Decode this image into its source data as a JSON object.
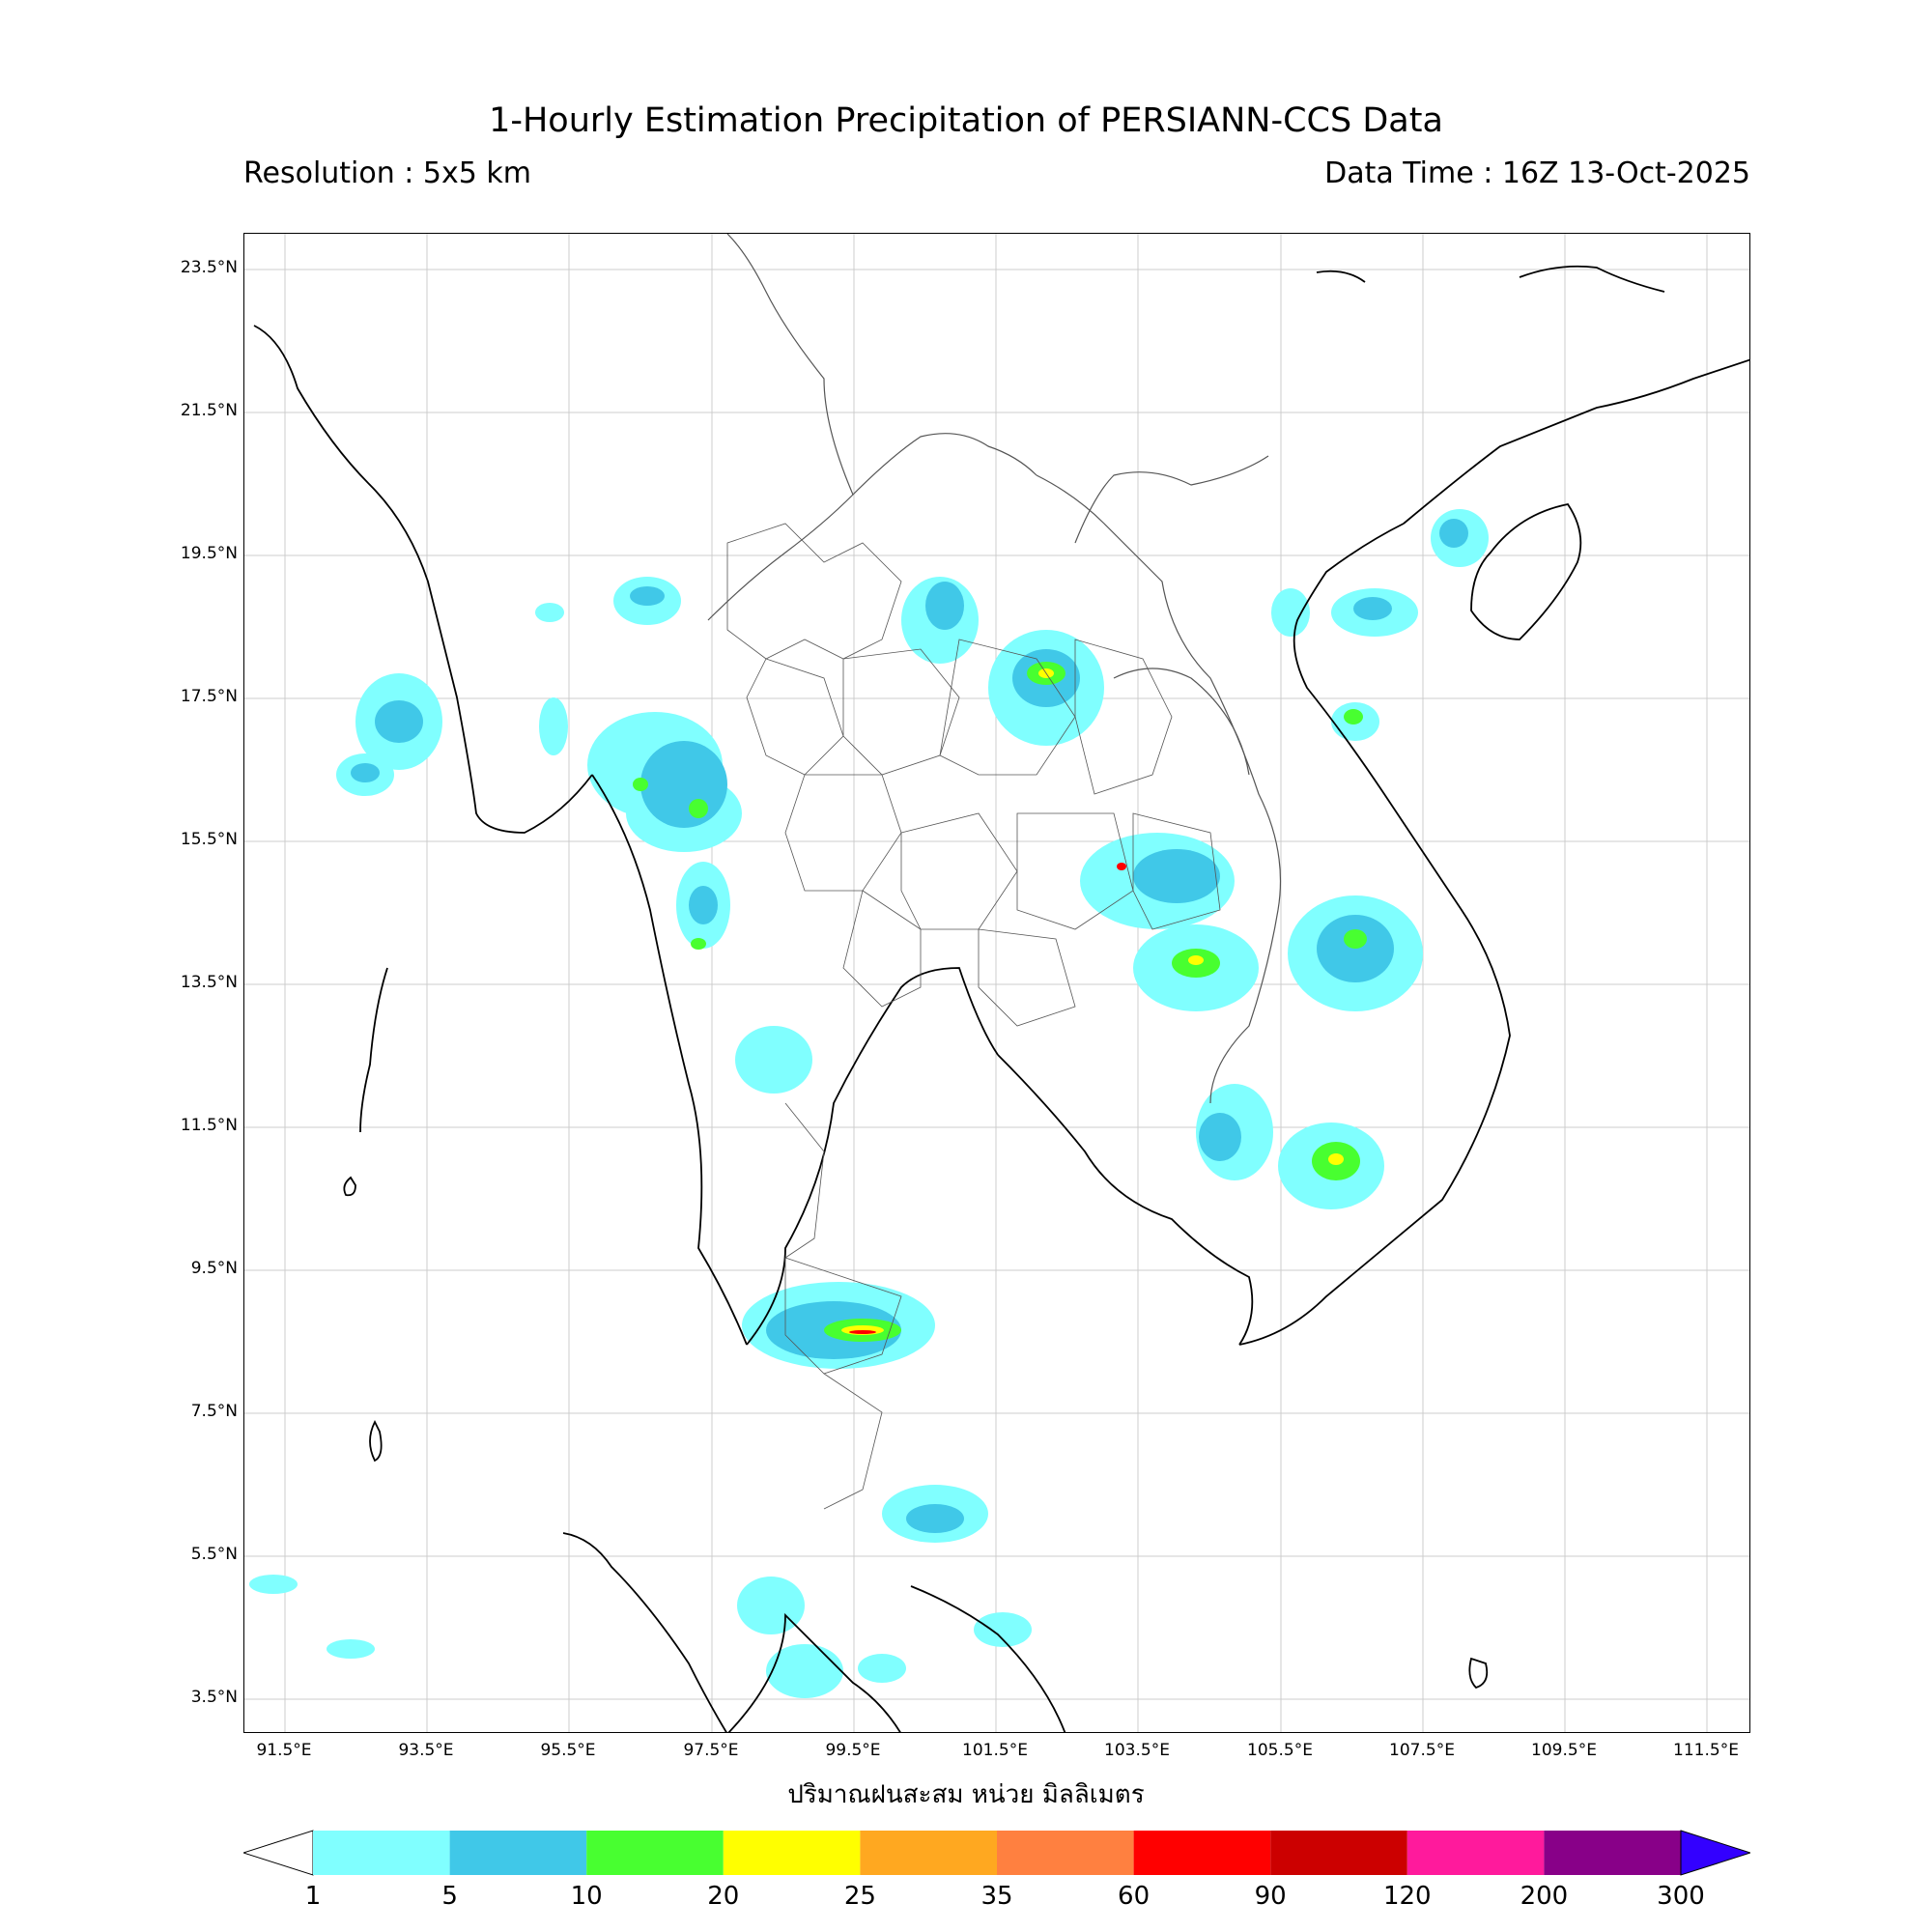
{
  "title": "1-Hourly Estimation Precipitation of PERSIANN-CCS Data",
  "resolution": "Resolution : 5x5 km",
  "data_time": "Data Time : 16Z 13-Oct-2025",
  "units_label": "ปริมาณฝนสะสม หน่วย มิลลิเมตร",
  "lat_labels": [
    "23.5°N",
    "21.5°N",
    "19.5°N",
    "17.5°N",
    "15.5°N",
    "13.5°N",
    "11.5°N",
    "9.5°N",
    "7.5°N",
    "5.5°N",
    "3.5°N"
  ],
  "lon_labels": [
    "91.5°E",
    "93.5°E",
    "95.5°E",
    "97.5°E",
    "99.5°E",
    "101.5°E",
    "103.5°E",
    "105.5°E",
    "107.5°E",
    "109.5°E",
    "111.5°E"
  ],
  "colorbar": {
    "ticks": [
      "1",
      "5",
      "10",
      "20",
      "25",
      "35",
      "60",
      "90",
      "120",
      "200",
      "300"
    ],
    "colors": [
      "#80ffff",
      "#40c8e8",
      "#48ff30",
      "#ffff00",
      "#ffa820",
      "#ff8040",
      "#ff0000",
      "#cc0000",
      "#ff1a9c",
      "#880088"
    ],
    "extend_max_color": "#3300ff"
  },
  "colors": {
    "light_rain": "#80ffff",
    "moderate_rain": "#40c8e8",
    "heavy_rain": "#48ff30",
    "very_heavy": "#ffff00",
    "extreme": "#ff0000"
  }
}
